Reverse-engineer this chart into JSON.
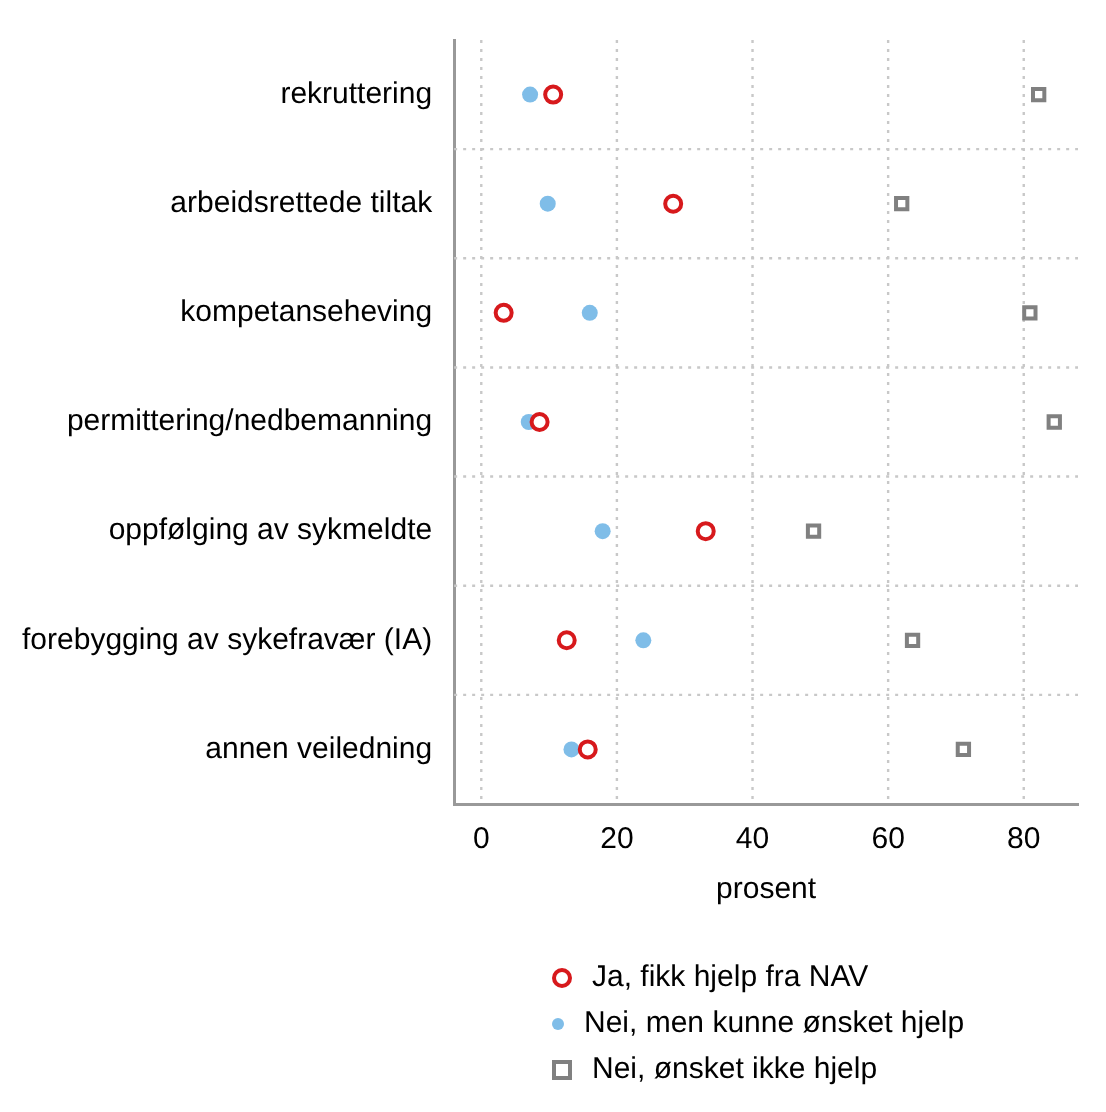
{
  "chart_data": {
    "type": "scatter",
    "orientation": "horizontal",
    "xlabel": "prosent",
    "categories": [
      "rekruttering",
      "arbeidsrettede tiltak",
      "kompetanseheving",
      "permittering/nedbemanning",
      "oppfølging av sykmeldte",
      "forebygging av sykefravær (IA)",
      "annen veiledning"
    ],
    "series": [
      {
        "name": "Ja, fikk hjelp fra NAV",
        "color": "#d7191c",
        "marker": "circle",
        "values": [
          10.6,
          28.3,
          3.3,
          8.6,
          33.1,
          12.6,
          15.7
        ]
      },
      {
        "name": "Nei, men kunne ønsket hjelp",
        "color": "#7fbde8",
        "marker": "circle",
        "values": [
          7.2,
          9.8,
          16.0,
          7.0,
          17.9,
          23.9,
          13.3
        ]
      },
      {
        "name": "Nei, ønsket ikke hjelp",
        "color": "#808080",
        "marker": "square",
        "values": [
          82.2,
          62.0,
          80.9,
          84.5,
          49.0,
          63.6,
          71.1
        ]
      }
    ],
    "xlim": [
      -4,
      88
    ],
    "xticks": [
      0,
      20,
      40,
      60,
      80
    ],
    "grid": true,
    "legend": "bottom"
  }
}
